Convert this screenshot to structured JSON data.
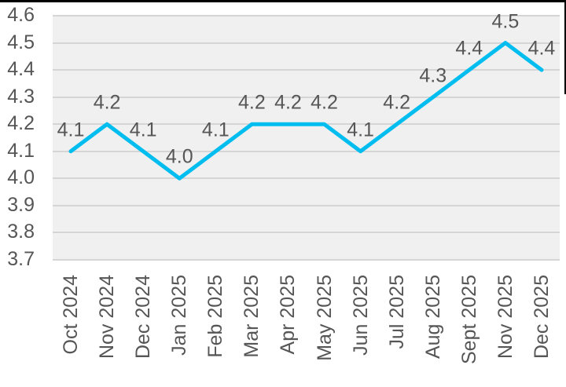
{
  "chart_data": {
    "type": "line",
    "title": "",
    "categories": [
      "Oct 2024",
      "Nov 2024",
      "Dec 2024",
      "Jan 2025",
      "Feb 2025",
      "Mar 2025",
      "Apr 2025",
      "May 2025",
      "Jun 2025",
      "Jul 2025",
      "Aug 2025",
      "Sept 2025",
      "Nov 2025",
      "Dec 2025"
    ],
    "values": [
      4.1,
      4.2,
      4.1,
      4.0,
      4.1,
      4.2,
      4.2,
      4.2,
      4.1,
      4.2,
      4.3,
      4.4,
      4.5,
      4.4
    ],
    "data_labels": [
      "4.1",
      "4.2",
      "4.1",
      "4.0",
      "4.1",
      "4.2",
      "4.2",
      "4.2",
      "4.1",
      "4.2",
      "4.3",
      "4.4",
      "4.5",
      "4.4"
    ],
    "y_tick_labels": [
      "4.6",
      "4.5",
      "4.4",
      "4.3",
      "4.2",
      "4.1",
      "4.0",
      "3.9",
      "3.8",
      "3.7"
    ],
    "ylim": [
      3.7,
      4.6
    ],
    "y_step": 0.1,
    "grid": true,
    "legend": "none",
    "xlabel": "",
    "ylabel": "",
    "colors": {
      "line": "#00BDF0",
      "plot_background": "#F0F0F0",
      "gridline": "#D5D5D5",
      "axis_label": "#565656",
      "data_label": "#565656",
      "border": "#000000"
    }
  }
}
